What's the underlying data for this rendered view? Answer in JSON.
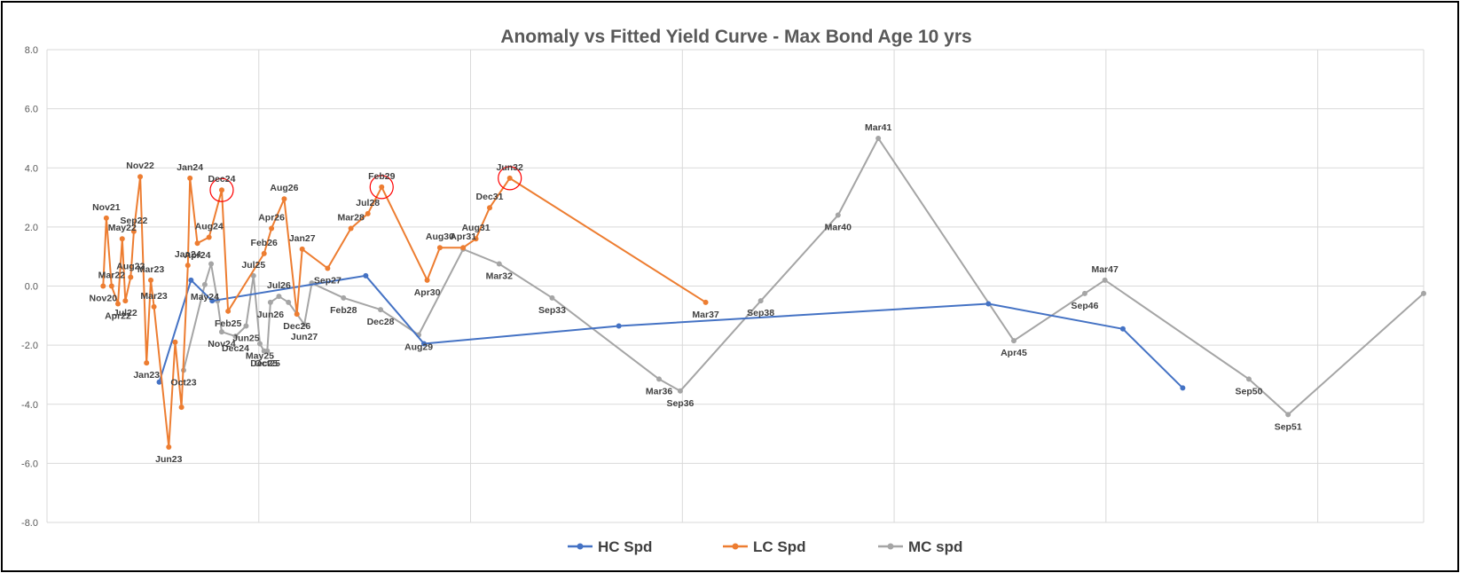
{
  "chart_data": {
    "type": "line",
    "title": "Anomaly vs Fitted Yield Curve - Max Bond Age 10 yrs",
    "xlim": [
      0,
      26
    ],
    "ylim": [
      -8,
      8
    ],
    "y_ticks": [
      "8.0",
      "6.0",
      "4.0",
      "2.0",
      "0.0",
      "-2.0",
      "-4.0",
      "-6.0",
      "-8.0"
    ],
    "grid": true,
    "legend_position": "bottom",
    "series": [
      {
        "name": "HC Spd",
        "color": "#4472C4",
        "points": [
          {
            "x": 2.12,
            "y": -3.25,
            "label": ""
          },
          {
            "x": 2.72,
            "y": 0.2,
            "label": ""
          },
          {
            "x": 3.12,
            "y": -0.5,
            "label": ""
          },
          {
            "x": 6.02,
            "y": 0.35,
            "label": ""
          },
          {
            "x": 7.12,
            "y": -1.95,
            "label": ""
          },
          {
            "x": 10.8,
            "y": -1.35,
            "label": ""
          },
          {
            "x": 17.78,
            "y": -0.6,
            "label": ""
          },
          {
            "x": 20.32,
            "y": -1.45,
            "label": ""
          },
          {
            "x": 21.45,
            "y": -3.45,
            "label": ""
          }
        ]
      },
      {
        "name": "LC Spd",
        "color": "#ED7D31",
        "points": [
          {
            "x": 1.06,
            "y": 0.0,
            "label": "Nov20"
          },
          {
            "x": 1.12,
            "y": 2.3,
            "label": "Nov21"
          },
          {
            "x": 1.22,
            "y": 0.0,
            "label": "Mar22"
          },
          {
            "x": 1.34,
            "y": -0.6,
            "label": "Apr22"
          },
          {
            "x": 1.42,
            "y": 1.6,
            "label": "May22"
          },
          {
            "x": 1.48,
            "y": -0.5,
            "label": "Jul22"
          },
          {
            "x": 1.58,
            "y": 0.3,
            "label": "Aug22"
          },
          {
            "x": 1.64,
            "y": 1.85,
            "label": "Sep22"
          },
          {
            "x": 1.76,
            "y": 3.7,
            "label": "Nov22"
          },
          {
            "x": 1.88,
            "y": -2.6,
            "label": "Jan23"
          },
          {
            "x": 1.96,
            "y": 0.2,
            "label": "Mar23"
          },
          {
            "x": 2.02,
            "y": -0.7,
            "label": "Mar23"
          },
          {
            "x": 2.3,
            "y": -5.45,
            "label": "Jun23"
          },
          {
            "x": 2.42,
            "y": -1.9,
            "label": ""
          },
          {
            "x": 2.54,
            "y": -4.1,
            "label": ""
          },
          {
            "x": 2.66,
            "y": 0.7,
            "label": "Jan24"
          },
          {
            "x": 2.7,
            "y": 3.65,
            "label": "Jan24"
          },
          {
            "x": 2.84,
            "y": 1.45,
            "label": "Apr24"
          },
          {
            "x": 3.06,
            "y": 1.65,
            "label": "Aug24"
          },
          {
            "x": 3.3,
            "y": 3.25,
            "label": "Dec24"
          },
          {
            "x": 3.42,
            "y": -0.85,
            "label": "Feb25"
          },
          {
            "x": 4.1,
            "y": 1.1,
            "label": "Feb26"
          },
          {
            "x": 4.24,
            "y": 1.95,
            "label": "Apr26"
          },
          {
            "x": 4.48,
            "y": 2.95,
            "label": "Aug26"
          },
          {
            "x": 4.72,
            "y": -0.95,
            "label": "Dec26"
          },
          {
            "x": 4.82,
            "y": 1.25,
            "label": "Jan27"
          },
          {
            "x": 5.3,
            "y": 0.6,
            "label": "Sep27"
          },
          {
            "x": 5.74,
            "y": 1.95,
            "label": "Mar28"
          },
          {
            "x": 6.06,
            "y": 2.45,
            "label": "Jul28"
          },
          {
            "x": 6.32,
            "y": 3.35,
            "label": "Feb29"
          },
          {
            "x": 7.18,
            "y": 0.2,
            "label": "Apr30"
          },
          {
            "x": 7.42,
            "y": 1.3,
            "label": "Aug30"
          },
          {
            "x": 7.86,
            "y": 1.3,
            "label": "Apr31"
          },
          {
            "x": 8.1,
            "y": 1.6,
            "label": "Aug31"
          },
          {
            "x": 8.36,
            "y": 2.65,
            "label": "Dec31"
          },
          {
            "x": 8.74,
            "y": 3.65,
            "label": "Jun32"
          },
          {
            "x": 12.44,
            "y": -0.55,
            "label": "Mar37"
          }
        ]
      },
      {
        "name": "MC spd",
        "color": "#A5A5A5",
        "points": [
          {
            "x": 2.58,
            "y": -2.85,
            "label": "Oct23"
          },
          {
            "x": 2.98,
            "y": 0.05,
            "label": "May24"
          },
          {
            "x": 3.1,
            "y": 0.75,
            "label": ""
          },
          {
            "x": 3.22,
            "y": -0.5,
            "label": ""
          },
          {
            "x": 3.3,
            "y": -1.55,
            "label": "Nov24"
          },
          {
            "x": 3.56,
            "y": -1.7,
            "label": "Dec24"
          },
          {
            "x": 3.76,
            "y": -1.35,
            "label": "Jun25"
          },
          {
            "x": 3.9,
            "y": 0.35,
            "label": "Jul25"
          },
          {
            "x": 4.02,
            "y": -1.95,
            "label": "May25"
          },
          {
            "x": 4.1,
            "y": -2.2,
            "label": "Dec25"
          },
          {
            "x": 4.16,
            "y": -2.2,
            "label": "Oct25"
          },
          {
            "x": 4.22,
            "y": -0.55,
            "label": "Jun26"
          },
          {
            "x": 4.38,
            "y": -0.35,
            "label": "Jul26"
          },
          {
            "x": 4.56,
            "y": -0.55,
            "label": ""
          },
          {
            "x": 4.86,
            "y": -1.3,
            "label": "Jun27"
          },
          {
            "x": 5.0,
            "y": 0.1,
            "label": ""
          },
          {
            "x": 5.6,
            "y": -0.4,
            "label": "Feb28"
          },
          {
            "x": 6.3,
            "y": -0.8,
            "label": "Dec28"
          },
          {
            "x": 7.02,
            "y": -1.65,
            "label": "Aug29"
          },
          {
            "x": 7.86,
            "y": 1.25,
            "label": ""
          },
          {
            "x": 8.54,
            "y": 0.75,
            "label": "Mar32"
          },
          {
            "x": 9.54,
            "y": -0.4,
            "label": "Sep33"
          },
          {
            "x": 11.56,
            "y": -3.15,
            "label": "Mar36"
          },
          {
            "x": 11.96,
            "y": -3.55,
            "label": "Sep36"
          },
          {
            "x": 13.48,
            "y": -0.5,
            "label": "Sep38"
          },
          {
            "x": 14.94,
            "y": 2.4,
            "label": "Mar40"
          },
          {
            "x": 15.7,
            "y": 5.0,
            "label": "Mar41"
          },
          {
            "x": 18.26,
            "y": -1.85,
            "label": "Apr45"
          },
          {
            "x": 19.6,
            "y": -0.25,
            "label": "Sep46"
          },
          {
            "x": 19.98,
            "y": 0.2,
            "label": "Mar47"
          },
          {
            "x": 22.7,
            "y": -3.15,
            "label": "Sep50"
          },
          {
            "x": 23.44,
            "y": -4.35,
            "label": "Sep51"
          },
          {
            "x": 26.0,
            "y": -0.25,
            "label": ""
          }
        ]
      }
    ],
    "highlight_circles": [
      {
        "x": 3.3,
        "y": 3.25
      },
      {
        "x": 6.32,
        "y": 3.35
      },
      {
        "x": 8.74,
        "y": 3.65
      }
    ]
  }
}
